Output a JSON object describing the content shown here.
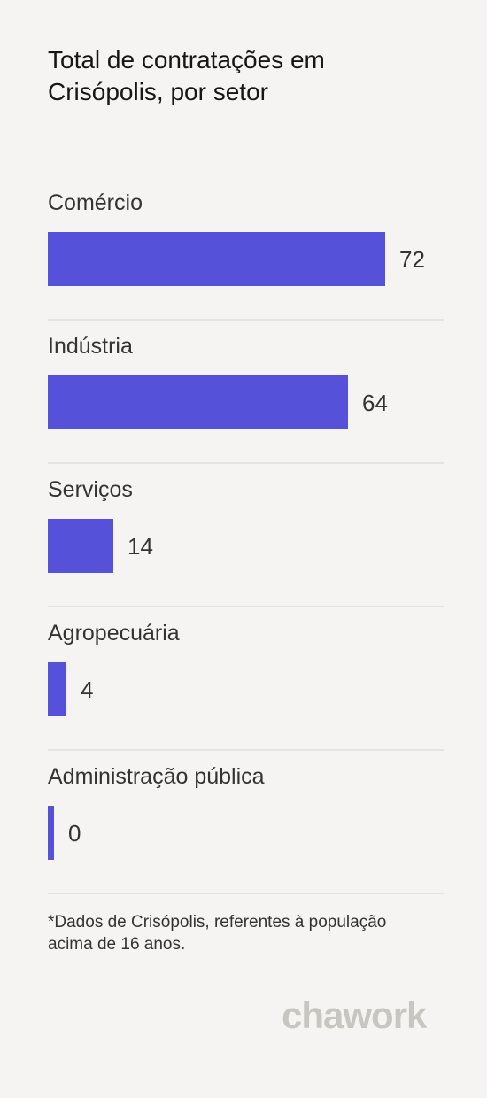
{
  "chart_data": {
    "type": "bar",
    "orientation": "horizontal",
    "title": "Total de contratações em Crisópolis, por setor",
    "categories": [
      "Comércio",
      "Indústria",
      "Serviços",
      "Agropecuária",
      "Administração pública"
    ],
    "values": [
      72,
      64,
      14,
      4,
      0
    ],
    "xlabel": "",
    "ylabel": "",
    "grid": false,
    "legend": "none",
    "bar_color": "#5551d8"
  },
  "footnote": "*Dados de Crisópolis, referentes à população acima de 16 anos.",
  "brand": "chawork"
}
